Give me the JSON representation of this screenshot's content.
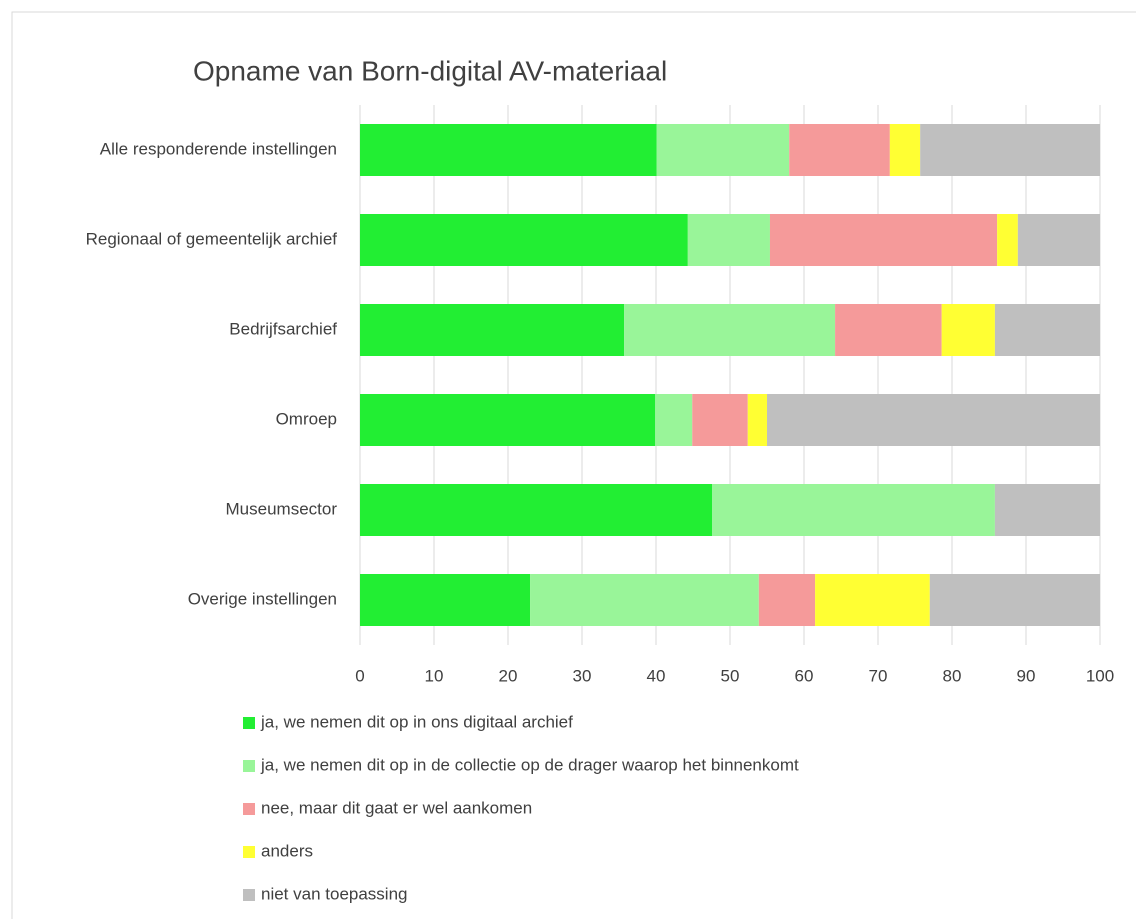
{
  "chart_data": {
    "type": "stacked_bar_horizontal",
    "title": "Opname van Born-digital AV-materiaal",
    "categories": [
      "Alle responderende instellingen",
      "Regionaal of gemeentelijk archief",
      "Bedrijfsarchief",
      "Omroep",
      "Museumsector",
      "Overige instellingen"
    ],
    "series": [
      {
        "name": "ja, we nemen dit op in ons digitaal archief",
        "color": "#22ee33",
        "values": [
          40.1,
          44.3,
          35.7,
          39.9,
          47.6,
          23.0
        ]
      },
      {
        "name": "ja, we nemen dit op in de collectie op de drager waarop het binnenkomt",
        "color": "#99f599",
        "values": [
          17.9,
          11.1,
          28.5,
          5.0,
          38.2,
          30.9
        ]
      },
      {
        "name": "nee, maar dit gaat er wel aankomen",
        "color": "#f59a9a",
        "values": [
          13.6,
          30.7,
          14.4,
          7.5,
          0,
          7.6
        ]
      },
      {
        "name": "anders",
        "color": "#ffff33",
        "values": [
          4.1,
          2.8,
          7.2,
          2.6,
          0,
          15.5
        ]
      },
      {
        "name": "niet van toepassing",
        "color": "#bfbfbf",
        "values": [
          24.3,
          11.1,
          14.2,
          45.0,
          14.2,
          23.0
        ]
      }
    ],
    "xlim": [
      0,
      100
    ],
    "xticks": [
      0,
      10,
      20,
      30,
      40,
      50,
      60,
      70,
      80,
      90,
      100
    ],
    "grid": true,
    "legend": "bottom"
  }
}
